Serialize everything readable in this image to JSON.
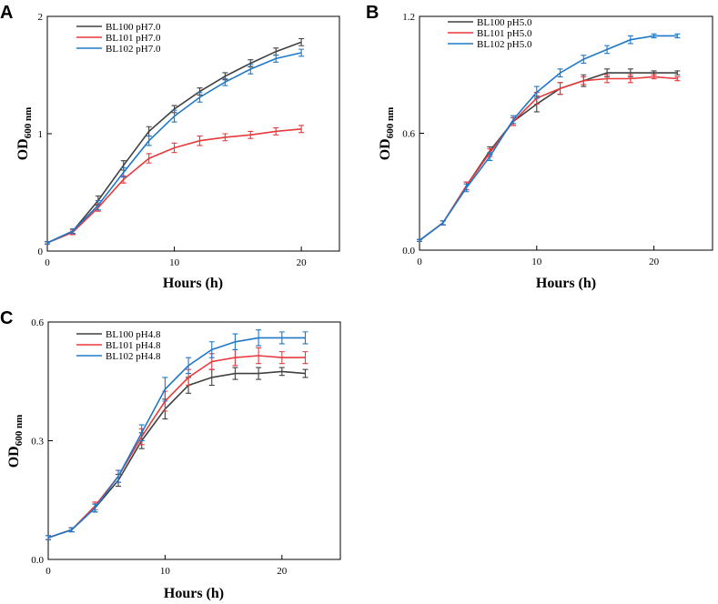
{
  "figure": {
    "colors": {
      "BL100": "#404040",
      "BL101": "#e8393c",
      "BL102": "#1f78c8"
    }
  },
  "chart_data": [
    {
      "type": "line",
      "panel": "A",
      "xlabel": "Hours (h)",
      "ylabel_main": "OD",
      "ylabel_sub": "600 nm",
      "xlim": [
        0,
        23
      ],
      "ylim": [
        0,
        2
      ],
      "xticks": [
        0,
        10,
        20
      ],
      "yticks": [
        0,
        1,
        2
      ],
      "ytick_labels": [
        "0",
        "1",
        "2"
      ],
      "legend_position": "top-left",
      "x": [
        0,
        2,
        4,
        6,
        8,
        10,
        12,
        14,
        16,
        18,
        20
      ],
      "series": [
        {
          "name": "BL100 pH7.0",
          "color": "#404040",
          "values": [
            0.07,
            0.17,
            0.43,
            0.73,
            1.02,
            1.21,
            1.36,
            1.49,
            1.6,
            1.7,
            1.78
          ],
          "errors": [
            0.01,
            0.02,
            0.04,
            0.04,
            0.04,
            0.03,
            0.03,
            0.03,
            0.03,
            0.03,
            0.03
          ]
        },
        {
          "name": "BL101 pH7.0",
          "color": "#e8393c",
          "values": [
            0.07,
            0.16,
            0.37,
            0.61,
            0.79,
            0.88,
            0.94,
            0.97,
            0.99,
            1.02,
            1.04
          ],
          "errors": [
            0.01,
            0.02,
            0.03,
            0.03,
            0.04,
            0.04,
            0.04,
            0.03,
            0.03,
            0.03,
            0.03
          ]
        },
        {
          "name": "BL102 pH7.0",
          "color": "#1f78c8",
          "values": [
            0.07,
            0.17,
            0.39,
            0.67,
            0.94,
            1.15,
            1.31,
            1.44,
            1.55,
            1.64,
            1.69
          ],
          "errors": [
            0.01,
            0.02,
            0.04,
            0.04,
            0.04,
            0.05,
            0.04,
            0.03,
            0.04,
            0.03,
            0.03
          ]
        }
      ]
    },
    {
      "type": "line",
      "panel": "B",
      "xlabel": "Hours (h)",
      "ylabel_main": "OD",
      "ylabel_sub": "600 nm",
      "xlim": [
        0,
        25
      ],
      "ylim": [
        0,
        1.2
      ],
      "xticks": [
        0,
        10,
        20
      ],
      "yticks": [
        0,
        0.6,
        1.2
      ],
      "ytick_labels": [
        "0.0",
        "0.6",
        "1.2"
      ],
      "legend_position": "top-left",
      "x": [
        0,
        2,
        4,
        6,
        8,
        10,
        12,
        14,
        16,
        18,
        20,
        22
      ],
      "series": [
        {
          "name": "BL100 pH5.0",
          "color": "#404040",
          "values": [
            0.05,
            0.14,
            0.33,
            0.51,
            0.66,
            0.75,
            0.83,
            0.87,
            0.91,
            0.91,
            0.91,
            0.91
          ],
          "errors": [
            0.005,
            0.01,
            0.02,
            0.02,
            0.02,
            0.04,
            0.03,
            0.03,
            0.02,
            0.02,
            0.01,
            0.01
          ]
        },
        {
          "name": "BL101 pH5.0",
          "color": "#e8393c",
          "values": [
            0.05,
            0.14,
            0.33,
            0.5,
            0.66,
            0.78,
            0.83,
            0.87,
            0.88,
            0.88,
            0.89,
            0.88
          ],
          "errors": [
            0.005,
            0.01,
            0.02,
            0.02,
            0.02,
            0.03,
            0.03,
            0.02,
            0.02,
            0.02,
            0.01,
            0.01
          ]
        },
        {
          "name": "BL102 pH5.0",
          "color": "#1f78c8",
          "values": [
            0.05,
            0.14,
            0.32,
            0.48,
            0.67,
            0.81,
            0.91,
            0.98,
            1.03,
            1.08,
            1.1,
            1.1
          ],
          "errors": [
            0.005,
            0.01,
            0.02,
            0.02,
            0.02,
            0.03,
            0.02,
            0.02,
            0.02,
            0.02,
            0.01,
            0.01
          ]
        }
      ]
    },
    {
      "type": "line",
      "panel": "C",
      "xlabel": "Hours (h)",
      "ylabel_main": "OD",
      "ylabel_sub": "600 nm",
      "xlim": [
        0,
        25
      ],
      "ylim": [
        0,
        0.6
      ],
      "xticks": [
        0,
        10,
        20
      ],
      "yticks": [
        0,
        0.3,
        0.6
      ],
      "ytick_labels": [
        "0.0",
        "0.3",
        "0.6"
      ],
      "legend_position": "top-left",
      "x": [
        0,
        2,
        4,
        6,
        8,
        10,
        12,
        14,
        16,
        18,
        20,
        22
      ],
      "series": [
        {
          "name": "BL100 pH4.8",
          "color": "#404040",
          "values": [
            0.055,
            0.075,
            0.13,
            0.2,
            0.3,
            0.38,
            0.44,
            0.46,
            0.47,
            0.47,
            0.475,
            0.47
          ],
          "errors": [
            0.005,
            0.005,
            0.01,
            0.015,
            0.02,
            0.025,
            0.02,
            0.02,
            0.015,
            0.015,
            0.01,
            0.01
          ]
        },
        {
          "name": "BL101 pH4.8",
          "color": "#e8393c",
          "values": [
            0.055,
            0.075,
            0.135,
            0.21,
            0.31,
            0.4,
            0.46,
            0.5,
            0.51,
            0.515,
            0.51,
            0.51
          ],
          "errors": [
            0.005,
            0.005,
            0.01,
            0.015,
            0.02,
            0.025,
            0.02,
            0.02,
            0.02,
            0.02,
            0.015,
            0.015
          ]
        },
        {
          "name": "BL102 pH4.8",
          "color": "#1f78c8",
          "values": [
            0.055,
            0.075,
            0.13,
            0.21,
            0.32,
            0.43,
            0.49,
            0.53,
            0.55,
            0.56,
            0.56,
            0.56
          ],
          "errors": [
            0.005,
            0.005,
            0.01,
            0.015,
            0.02,
            0.03,
            0.02,
            0.02,
            0.02,
            0.02,
            0.015,
            0.015
          ]
        }
      ]
    }
  ]
}
